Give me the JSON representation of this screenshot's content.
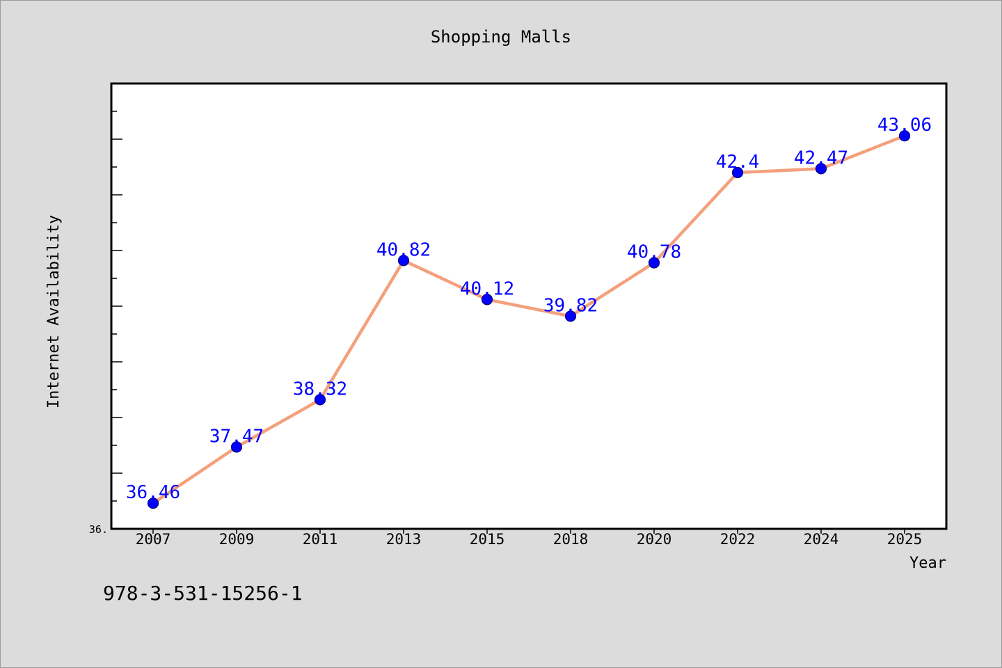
{
  "chart_data": {
    "type": "line",
    "title": "Shopping Malls",
    "xlabel": "Year",
    "ylabel": "Internet Availability",
    "categories": [
      "2007",
      "2009",
      "2011",
      "2013",
      "2015",
      "2018",
      "2020",
      "2022",
      "2024",
      "2025"
    ],
    "series": [
      {
        "values": [
          36.46,
          37.47,
          38.32,
          40.82,
          40.12,
          39.82,
          40.78,
          42.4,
          42.47,
          43.06
        ],
        "data_labels": [
          "36.46",
          "37.47",
          "38.32",
          "40.82",
          "40.12",
          "39.82",
          "40.78",
          "42.4",
          "42.47",
          "43.06"
        ]
      }
    ],
    "ylim": [
      36.0,
      44.0
    ],
    "y_tick_labels": [
      "36."
    ],
    "grid": false,
    "legend": "none",
    "colors": {
      "line": "#f4a07c",
      "marker": "#0000ff",
      "data_label": "#0000ff",
      "plot_background": "#ffffff",
      "figure_background": "#dcdcdc"
    }
  },
  "footer": {
    "text": "978-3-531-15256-1"
  }
}
